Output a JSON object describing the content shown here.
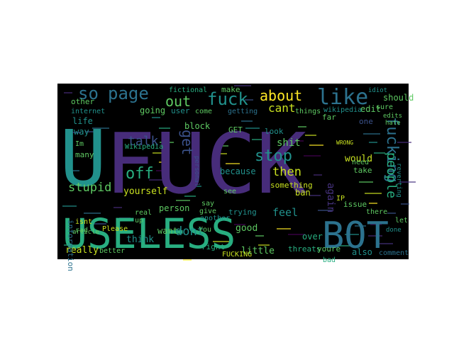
{
  "background_color": "#000000",
  "palette": {
    "purple": "#472c7a",
    "violet": "#46327e",
    "blue": "#3b528b",
    "teal": "#2c728e",
    "cyan": "#21918c",
    "green": "#28ae80",
    "lime": "#5ec962",
    "yellow": "#c8e020",
    "bright": "#fde725",
    "dark": "#440154"
  },
  "words": [
    {
      "text": "FUCK",
      "color": "purple"
    },
    {
      "text": "U",
      "color": "cyan"
    },
    {
      "text": "USELESS",
      "color": "green"
    },
    {
      "text": "BOT",
      "color": "teal"
    },
    {
      "text": "like",
      "color": "teal"
    },
    {
      "text": "page",
      "color": "teal"
    },
    {
      "text": "so",
      "color": "teal"
    },
    {
      "text": "fuck",
      "color": "cyan"
    },
    {
      "text": "about",
      "color": "bright"
    },
    {
      "text": "out",
      "color": "lime"
    },
    {
      "text": "cant",
      "color": "yellow"
    },
    {
      "text": "fucking",
      "color": "teal"
    },
    {
      "text": "stop",
      "color": "cyan"
    },
    {
      "text": "get",
      "color": "blue"
    },
    {
      "text": "talk",
      "color": "blue"
    },
    {
      "text": "off",
      "color": "green"
    },
    {
      "text": "stupid",
      "color": "lime"
    },
    {
      "text": "then",
      "color": "yellow"
    },
    {
      "text": "people",
      "color": "green"
    },
    {
      "text": "dont",
      "color": "cyan"
    },
    {
      "text": "yourself",
      "color": "yellow"
    },
    {
      "text": "shit",
      "color": "lime"
    },
    {
      "text": "would",
      "color": "yellow"
    },
    {
      "text": "again",
      "color": "violet"
    },
    {
      "text": "feel",
      "color": "cyan"
    },
    {
      "text": "really",
      "color": "yellow"
    },
    {
      "text": "think",
      "color": "cyan"
    },
    {
      "text": "want",
      "color": "lime"
    },
    {
      "text": "good",
      "color": "lime"
    },
    {
      "text": "little",
      "color": "lime"
    },
    {
      "text": "also",
      "color": "cyan"
    },
    {
      "text": "going",
      "color": "lime"
    },
    {
      "text": "block",
      "color": "lime"
    },
    {
      "text": "life",
      "color": "cyan"
    },
    {
      "text": "way",
      "color": "cyan"
    },
    {
      "text": "edit",
      "color": "lime"
    },
    {
      "text": "should",
      "color": "lime"
    },
    {
      "text": "one",
      "color": "blue"
    },
    {
      "text": "person",
      "color": "lime"
    },
    {
      "text": "right",
      "color": "green"
    },
    {
      "text": "because",
      "color": "cyan"
    },
    {
      "text": "something",
      "color": "yellow"
    },
    {
      "text": "threats",
      "color": "green"
    },
    {
      "text": "youre",
      "color": "lime"
    },
    {
      "text": "user",
      "color": "cyan"
    },
    {
      "text": "Wikipedia",
      "color": "green"
    },
    {
      "text": "wikipedia",
      "color": "cyan"
    },
    {
      "text": "make",
      "color": "lime"
    },
    {
      "text": "fictional",
      "color": "green"
    },
    {
      "text": "internet",
      "color": "cyan"
    },
    {
      "text": "other",
      "color": "lime"
    },
    {
      "text": "many",
      "color": "lime"
    },
    {
      "text": "ban",
      "color": "yellow"
    },
    {
      "text": "take",
      "color": "lime"
    },
    {
      "text": "there",
      "color": "lime"
    },
    {
      "text": "comment",
      "color": "teal"
    },
    {
      "text": "bad",
      "color": "green"
    },
    {
      "text": "over",
      "color": "green"
    },
    {
      "text": "FUCKING",
      "color": "yellow"
    },
    {
      "text": "trying",
      "color": "cyan"
    },
    {
      "text": "issue",
      "color": "lime"
    },
    {
      "text": "You",
      "color": "lime"
    },
    {
      "text": "Please",
      "color": "yellow"
    },
    {
      "text": "real",
      "color": "lime"
    },
    {
      "text": "better",
      "color": "lime"
    },
    {
      "text": "information",
      "color": "teal"
    },
    {
      "text": "isnt",
      "color": "yellow"
    },
    {
      "text": "far",
      "color": "lime"
    },
    {
      "text": "things",
      "color": "lime"
    },
    {
      "text": "need",
      "color": "lime"
    },
    {
      "text": "look",
      "color": "cyan"
    },
    {
      "text": "see",
      "color": "lime"
    },
    {
      "text": "say",
      "color": "lime"
    },
    {
      "text": "give",
      "color": "lime"
    },
    {
      "text": "IP",
      "color": "yellow"
    },
    {
      "text": "rad",
      "color": "lime"
    },
    {
      "text": "GET",
      "color": "lime"
    },
    {
      "text": "come",
      "color": "lime"
    },
    {
      "text": "getting",
      "color": "teal"
    },
    {
      "text": "personal",
      "color": "blue"
    },
    {
      "text": "another",
      "color": "cyan"
    },
    {
      "text": "sure",
      "color": "lime"
    },
    {
      "text": "idiot",
      "color": "cyan"
    },
    {
      "text": "hate",
      "color": "lime"
    },
    {
      "text": "edits",
      "color": "lime"
    },
    {
      "text": "let",
      "color": "lime"
    },
    {
      "text": "done",
      "color": "cyan"
    },
    {
      "text": "up",
      "color": "lime"
    },
    {
      "text": "Im",
      "color": "lime"
    },
    {
      "text": "WRONG",
      "color": "yellow"
    },
    {
      "text": "article",
      "color": "lime"
    },
    {
      "text": "reverting",
      "color": "cyan"
    }
  ]
}
